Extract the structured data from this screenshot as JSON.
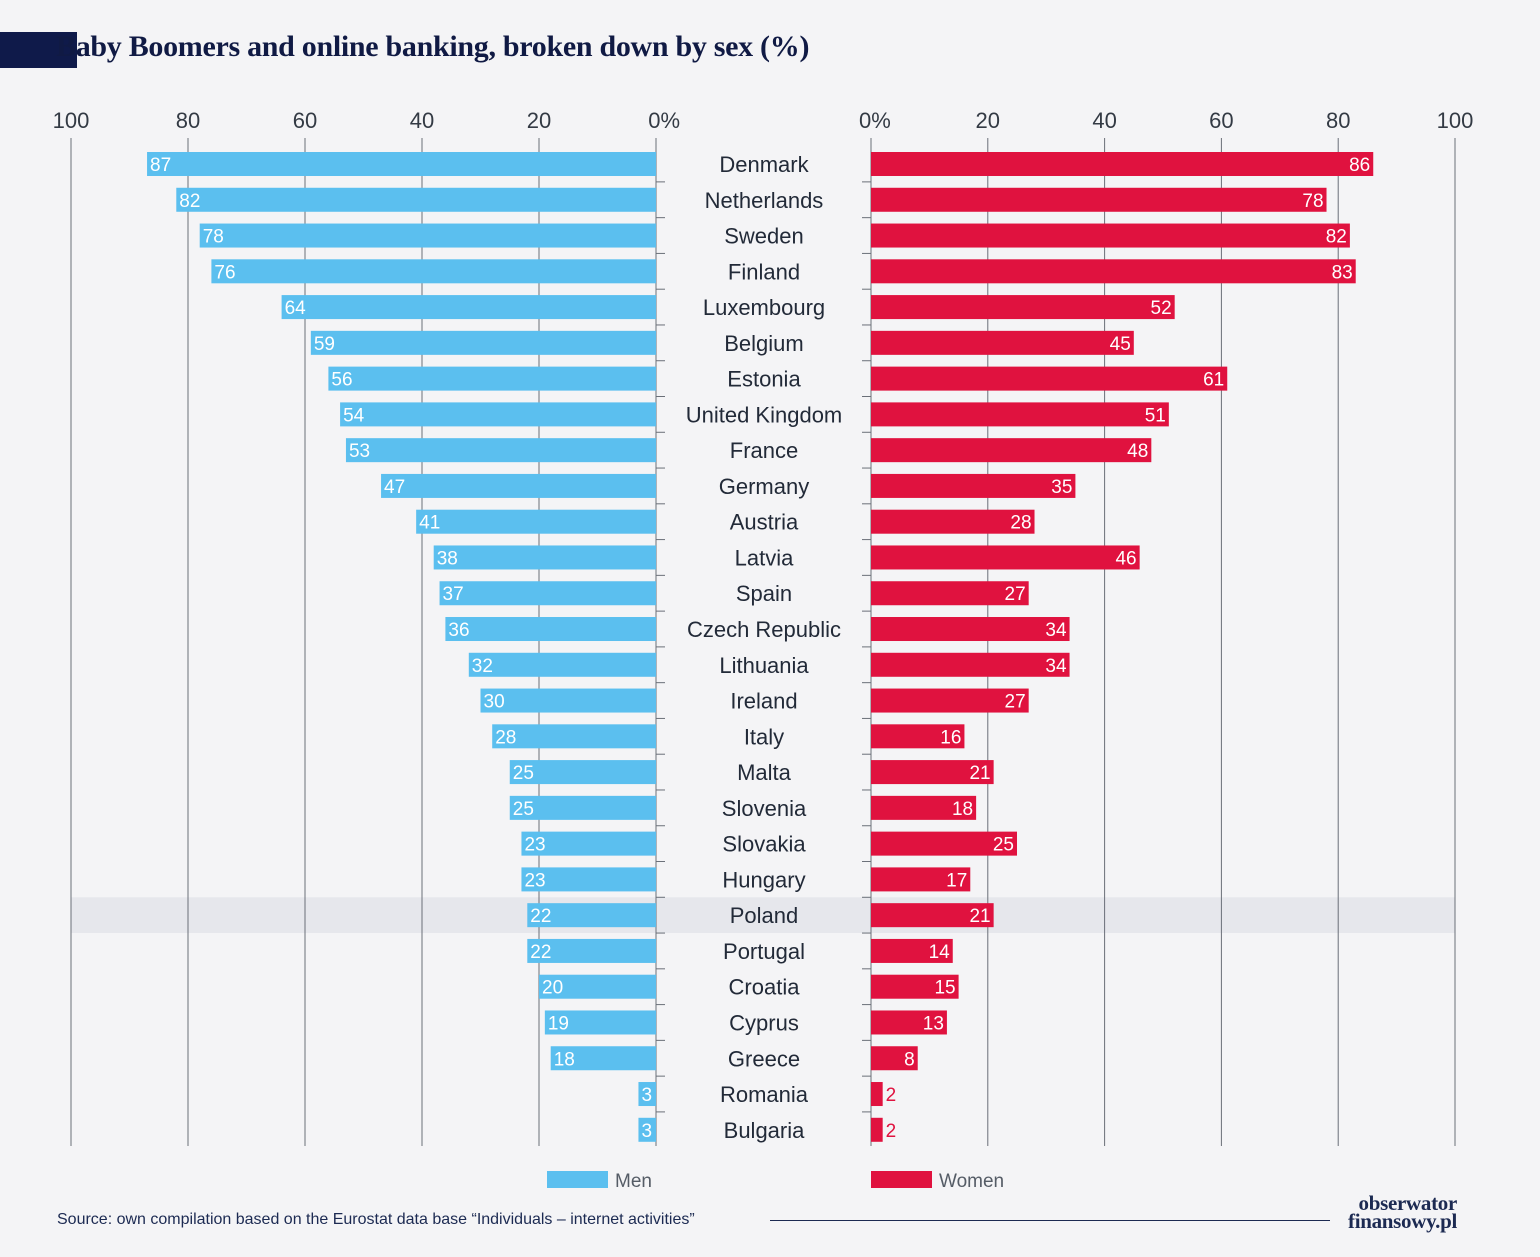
{
  "title": "Baby Boomers and online banking, broken down by sex (%)",
  "source": "Source: own compilation based on the Eurostat data base “Individuals – internet activities”",
  "logo": {
    "line1": "obserwator",
    "line2": "finansowy.pl"
  },
  "colors": {
    "men": "#5bbfef",
    "women": "#e0123f",
    "highlight": "#e6e7ec",
    "gridline": "#6a6f78"
  },
  "chart_data": {
    "type": "bar",
    "orientation": "horizontal-butterfly",
    "title": "Baby Boomers and online banking, broken down by sex (%)",
    "left_axis_ticks": [
      "100",
      "80",
      "60",
      "40",
      "20",
      "0%"
    ],
    "right_axis_ticks": [
      "0%",
      "20",
      "40",
      "60",
      "80",
      "100"
    ],
    "xlim": [
      0,
      100
    ],
    "grid": true,
    "legend_position": "bottom",
    "highlighted_category": "Poland",
    "categories": [
      "Denmark",
      "Netherlands",
      "Sweden",
      "Finland",
      "Luxembourg",
      "Belgium",
      "Estonia",
      "United Kingdom",
      "France",
      "Germany",
      "Austria",
      "Latvia",
      "Spain",
      "Czech Republic",
      "Lithuania",
      "Ireland",
      "Italy",
      "Malta",
      "Slovenia",
      "Slovakia",
      "Hungary",
      "Poland",
      "Portugal",
      "Croatia",
      "Cyprus",
      "Greece",
      "Romania",
      "Bulgaria"
    ],
    "series": [
      {
        "name": "Men",
        "values": [
          87,
          82,
          78,
          76,
          64,
          59,
          56,
          54,
          53,
          47,
          41,
          38,
          37,
          36,
          32,
          30,
          28,
          25,
          25,
          23,
          23,
          22,
          22,
          20,
          19,
          18,
          3,
          3
        ]
      },
      {
        "name": "Women",
        "values": [
          86,
          78,
          82,
          83,
          52,
          45,
          61,
          51,
          48,
          35,
          28,
          46,
          27,
          34,
          34,
          27,
          16,
          21,
          18,
          25,
          17,
          21,
          14,
          15,
          13,
          8,
          2,
          2
        ]
      }
    ]
  }
}
